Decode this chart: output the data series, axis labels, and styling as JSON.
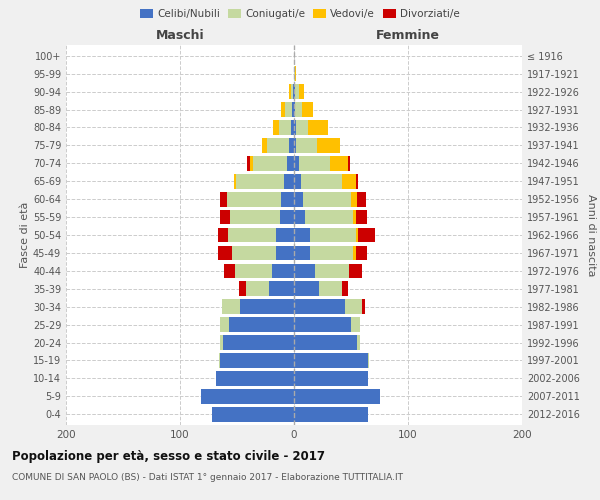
{
  "age_groups": [
    "0-4",
    "5-9",
    "10-14",
    "15-19",
    "20-24",
    "25-29",
    "30-34",
    "35-39",
    "40-44",
    "45-49",
    "50-54",
    "55-59",
    "60-64",
    "65-69",
    "70-74",
    "75-79",
    "80-84",
    "85-89",
    "90-94",
    "95-99",
    "100+"
  ],
  "birth_years": [
    "2012-2016",
    "2007-2011",
    "2002-2006",
    "1997-2001",
    "1992-1996",
    "1987-1991",
    "1982-1986",
    "1977-1981",
    "1972-1976",
    "1967-1971",
    "1962-1966",
    "1957-1961",
    "1952-1956",
    "1947-1951",
    "1942-1946",
    "1937-1941",
    "1932-1936",
    "1927-1931",
    "1922-1926",
    "1917-1921",
    "≤ 1916"
  ],
  "colors": {
    "celibi": "#4472c4",
    "coniugati": "#c5d9a0",
    "vedovi": "#ffc000",
    "divorziati": "#cc0000"
  },
  "males_celibi": [
    72,
    82,
    68,
    65,
    62,
    57,
    47,
    22,
    19,
    16,
    16,
    12,
    11,
    9,
    6,
    4,
    3,
    2,
    1,
    0,
    0
  ],
  "males_coniugati": [
    0,
    0,
    0,
    1,
    3,
    8,
    16,
    20,
    33,
    38,
    42,
    44,
    48,
    42,
    30,
    20,
    10,
    6,
    2,
    0,
    0
  ],
  "males_vedovi": [
    0,
    0,
    0,
    0,
    0,
    0,
    0,
    0,
    0,
    0,
    0,
    0,
    0,
    2,
    3,
    4,
    5,
    3,
    1,
    0,
    0
  ],
  "males_divorziati": [
    0,
    0,
    0,
    0,
    0,
    0,
    0,
    6,
    9,
    13,
    9,
    9,
    6,
    0,
    2,
    0,
    0,
    0,
    0,
    0,
    0
  ],
  "females_nubili": [
    65,
    75,
    65,
    65,
    55,
    50,
    45,
    22,
    18,
    14,
    14,
    10,
    8,
    6,
    4,
    2,
    2,
    1,
    1,
    0,
    0
  ],
  "females_coniugate": [
    0,
    0,
    0,
    1,
    3,
    8,
    15,
    20,
    30,
    38,
    40,
    42,
    42,
    36,
    28,
    18,
    10,
    6,
    3,
    1,
    0
  ],
  "females_vedove": [
    0,
    0,
    0,
    0,
    0,
    0,
    0,
    0,
    0,
    2,
    2,
    2,
    5,
    12,
    15,
    20,
    18,
    10,
    5,
    1,
    0
  ],
  "females_divorziate": [
    0,
    0,
    0,
    0,
    0,
    0,
    2,
    5,
    12,
    10,
    15,
    10,
    8,
    2,
    2,
    0,
    0,
    0,
    0,
    0,
    0
  ],
  "title": "Popolazione per età, sesso e stato civile - 2017",
  "subtitle": "COMUNE DI SAN PAOLO (BS) - Dati ISTAT 1° gennaio 2017 - Elaborazione TUTTITALIA.IT",
  "xlabel_left": "Maschi",
  "xlabel_right": "Femmine",
  "ylabel_left": "Fasce di età",
  "ylabel_right": "Anni di nascita",
  "xlim": 200,
  "legend_labels": [
    "Celibi/Nubili",
    "Coniugati/e",
    "Vedovi/e",
    "Divorziati/e"
  ],
  "bg_color": "#f0f0f0",
  "plot_bg": "#ffffff"
}
